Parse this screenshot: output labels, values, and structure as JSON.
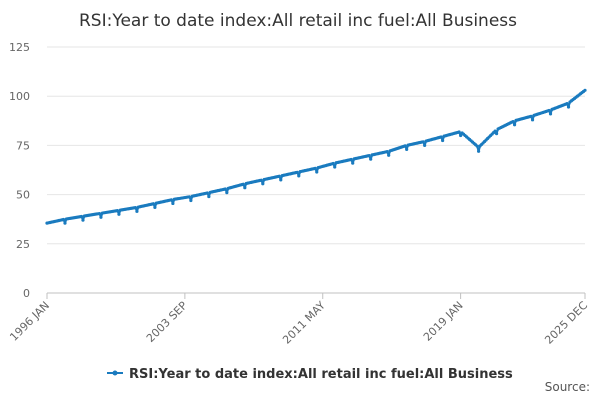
{
  "chart_data": {
    "type": "line",
    "title": "RSI:Year to date index:All retail inc fuel:All Business",
    "xlabel": "",
    "ylabel": "",
    "ylim": [
      0,
      125
    ],
    "y_ticks": [
      "0",
      "25",
      "50",
      "75",
      "100",
      "125"
    ],
    "y_tick_values": [
      0,
      25,
      50,
      75,
      100,
      125
    ],
    "x_ticks": [
      "1996 JAN",
      "2003 SEP",
      "2011 MAY",
      "2019 JAN",
      "2025 DEC"
    ],
    "x_tick_month_index": [
      0,
      92,
      184,
      276,
      359
    ],
    "grid": true,
    "legend_position": "bottom",
    "series": [
      {
        "name": "RSI:Year to date index:All retail inc fuel:All Business",
        "color": "#1a7bbf",
        "start": "1996 JAN",
        "anchor_month_index": [
          0,
          12,
          24,
          36,
          48,
          60,
          72,
          84,
          96,
          108,
          120,
          132,
          144,
          156,
          168,
          180,
          192,
          204,
          216,
          228,
          240,
          252,
          264,
          276,
          288,
          300,
          312,
          324,
          336,
          348,
          359
        ],
        "anchor_values": [
          35.5,
          37.5,
          39.0,
          40.5,
          42.0,
          43.5,
          45.5,
          47.5,
          49.0,
          51.0,
          53.0,
          55.5,
          57.5,
          59.5,
          61.5,
          63.5,
          66.0,
          68.0,
          70.0,
          72.0,
          75.0,
          77.0,
          79.5,
          82.0,
          74.0,
          83.0,
          87.5,
          90.0,
          93.0,
          96.5,
          103.0
        ],
        "january_dip": 2.0
      }
    ]
  },
  "source_label": "Source:"
}
